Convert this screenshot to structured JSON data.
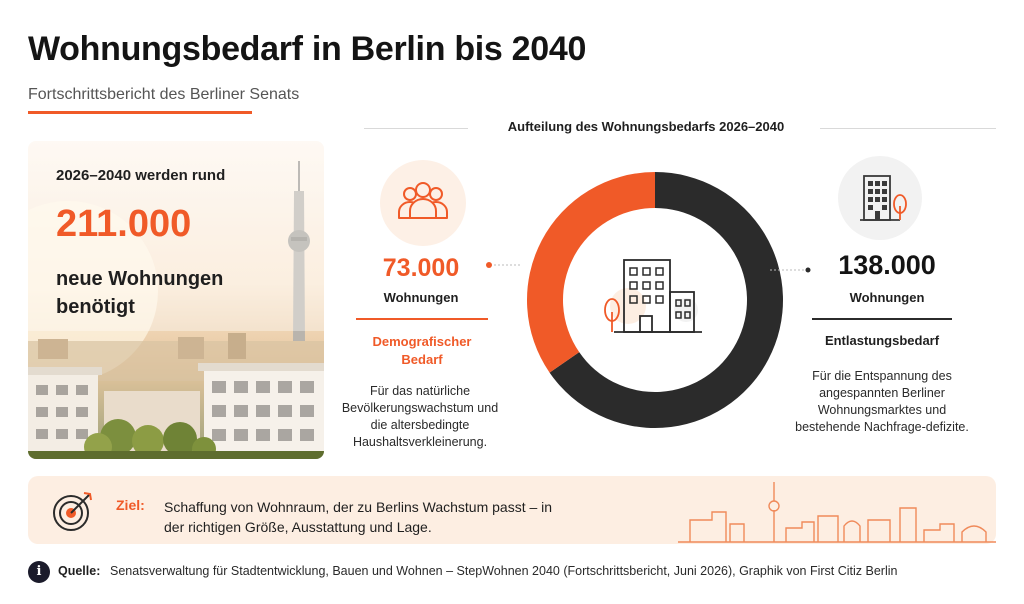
{
  "header": {
    "title": "Wohnungsbedarf in Berlin bis 2040",
    "subtitle": "Fortschrittsbericht des Berliner Senats"
  },
  "hero": {
    "intro": "2026–2040 werden rund",
    "number": "211.000",
    "text": "neue Wohnungen benötigt"
  },
  "split": {
    "title": "Aufteilung des Wohnungsbedarfs 2026–2040",
    "demographic": {
      "value": "73.000",
      "unit": "Wohnungen",
      "label": "Demografischer Bedarf",
      "description": "Für das natürliche Bevölkerungswachstum und die altersbedingte Haushaltsverkleinerung."
    },
    "relief": {
      "value": "138.000",
      "unit": "Wohnungen",
      "label": "Entlastungsbedarf",
      "description": "Für die Entspannung des angespannten Berliner Wohnungsmarktes und bestehende Nachfrage-defizite."
    }
  },
  "goal": {
    "label": "Ziel:",
    "text": "Schaffung von Wohnraum, der zu Berlins Wachstum passt – in der richtigen Größe, Ausstattung und Lage."
  },
  "source": {
    "label": "Quelle:",
    "text": "Senatsverwaltung für Stadtentwicklung, Bauen und Wohnen – StepWohnen 2040 (Fortschrittsbericht, Juni 2026), Graphik von First Citiz Berlin"
  },
  "icons": {
    "people": "people-group-icon",
    "building": "building-icon",
    "target": "target-icon",
    "info": "info-icon"
  },
  "colors": {
    "accent": "#f05a28",
    "dark": "#2b2b2b",
    "goal_bg": "#fdeee2"
  },
  "chart_data": {
    "type": "pie",
    "style": "donut",
    "title": "Aufteilung des Wohnungsbedarfs 2026–2040",
    "total": 211000,
    "categories": [
      "Demografischer Bedarf",
      "Entlastungsbedarf"
    ],
    "values": [
      73000,
      138000
    ],
    "colors": [
      "#f05a28",
      "#2b2b2b"
    ]
  }
}
